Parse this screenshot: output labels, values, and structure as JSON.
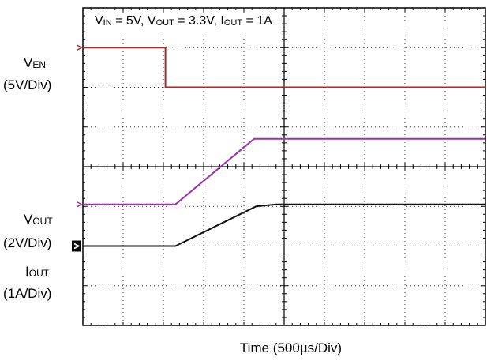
{
  "conditions": {
    "vin_label": "V",
    "vin_sub": "IN",
    "vin_value": " = 5V, ",
    "vout_label": "V",
    "vout_sub": "OUT",
    "vout_value": " = 3.3V, ",
    "iout_label": "I",
    "iout_sub": "OUT",
    "iout_value": " = 1A"
  },
  "channels": {
    "ven": {
      "name": "V",
      "sub": "EN",
      "scale": "(5V/Div)"
    },
    "vout": {
      "name": "V",
      "sub": "OUT",
      "scale": "(2V/Div)"
    },
    "iout": {
      "name": "I",
      "sub": "OUT",
      "scale": "(1A/Div)"
    }
  },
  "xlabel": "Time (500µs/Div)",
  "colors": {
    "ven": "#a52a2a",
    "vout": "#9b30a8",
    "iout": "#111111",
    "grid": "#000000"
  },
  "chart_data": {
    "type": "line",
    "x_unit": "div",
    "x_divisions": 10,
    "y_divisions": 8,
    "grid": true,
    "series": [
      {
        "name": "VEN",
        "points": [
          [
            0,
            1.0
          ],
          [
            2.05,
            1.0
          ],
          [
            2.05,
            2.0
          ],
          [
            10,
            2.0
          ]
        ]
      },
      {
        "name": "VOUT",
        "points": [
          [
            0,
            4.95
          ],
          [
            2.3,
            4.95
          ],
          [
            4.25,
            3.3
          ],
          [
            4.8,
            3.3
          ],
          [
            10,
            3.3
          ]
        ]
      },
      {
        "name": "IOUT",
        "points": [
          [
            0,
            6.0
          ],
          [
            2.3,
            6.0
          ],
          [
            4.3,
            5.0
          ],
          [
            4.8,
            4.95
          ],
          [
            10,
            4.95
          ]
        ]
      }
    ]
  }
}
